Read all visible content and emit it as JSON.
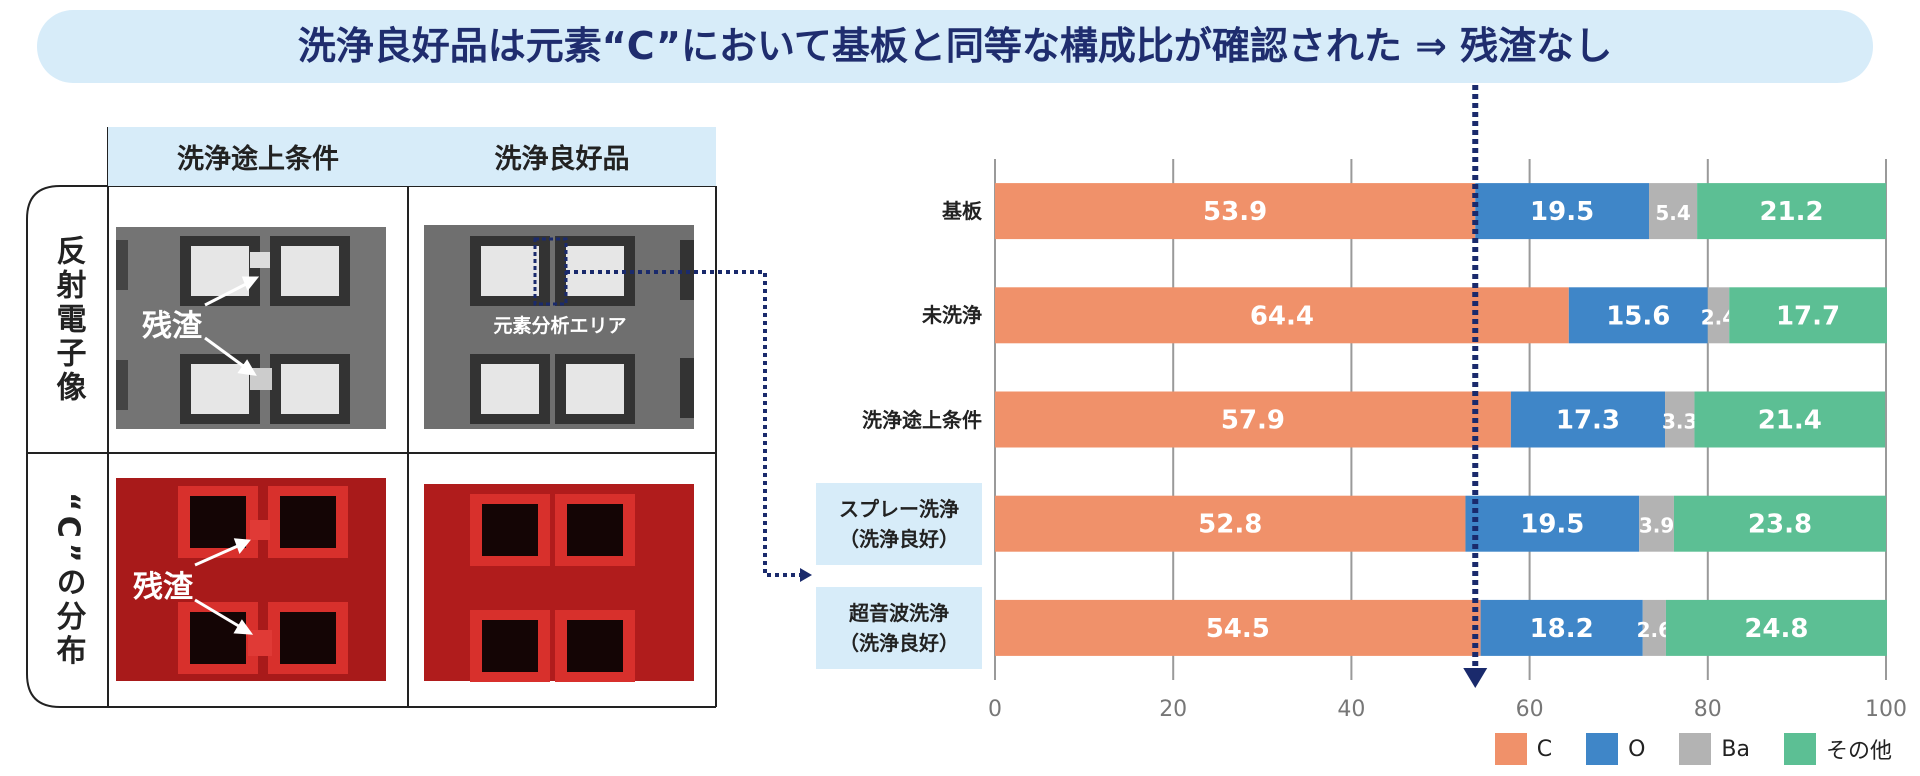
{
  "title": "洗浄良好品は元素“C”において基板と同等な構成比が確認された ⇒ 残渣なし",
  "table": {
    "columns": [
      "洗浄途上条件",
      "洗浄良好品"
    ],
    "rows": [
      "反射電子像",
      "“C”の分布"
    ],
    "annotations": {
      "residue": "残渣",
      "area": "元素分析エリア"
    }
  },
  "chart_data": {
    "type": "stacked-bar-horizontal",
    "categories": [
      "基板",
      "未洗浄",
      "洗浄途上条件",
      "スプレー洗浄\n（洗浄良好）",
      "超音波洗浄\n（洗浄良好）"
    ],
    "series": [
      {
        "name": "C",
        "color": "#f0916a",
        "values": [
          53.9,
          64.4,
          57.9,
          52.8,
          54.5
        ]
      },
      {
        "name": "O",
        "color": "#3f86c8",
        "values": [
          19.5,
          15.6,
          17.3,
          19.5,
          18.2
        ]
      },
      {
        "name": "Ba",
        "color": "#b3b3b3",
        "values": [
          5.4,
          2.4,
          3.3,
          3.9,
          2.6
        ]
      },
      {
        "name": "その他",
        "color": "#5cbf94",
        "values": [
          21.2,
          17.7,
          21.4,
          23.8,
          24.8
        ]
      }
    ],
    "xlim": [
      0,
      100
    ],
    "xticks": [
      0,
      20,
      40,
      60,
      80,
      100
    ],
    "grid": true
  }
}
